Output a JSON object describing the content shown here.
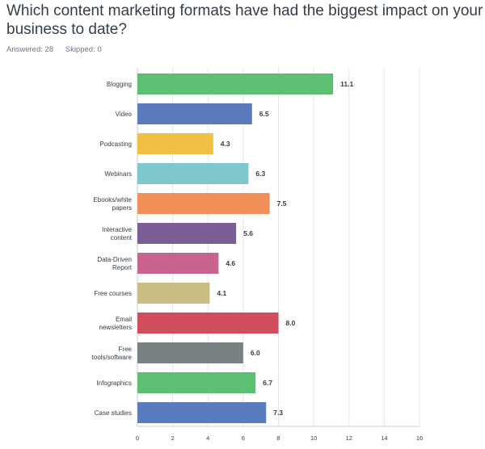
{
  "survey": {
    "question": "Which content marketing formats have had the biggest impact on your business to date?",
    "answered_label": "Answered: 28",
    "skipped_label": "Skipped: 0"
  },
  "chart_data": {
    "type": "bar",
    "orientation": "horizontal",
    "categories": [
      "Blogging",
      "Video",
      "Podcasting",
      "Webinars",
      "Ebooks/white papers",
      "Interactive content",
      "Data-Driven Report",
      "Free courses",
      "Email newsletters",
      "Free tools/software",
      "Infographics",
      "Case studies"
    ],
    "category_lines": [
      [
        "Blogging"
      ],
      [
        "Video"
      ],
      [
        "Podcasting"
      ],
      [
        "Webinars"
      ],
      [
        "Ebooks/white",
        "papers"
      ],
      [
        "Interactive",
        "content"
      ],
      [
        "Data-Driven",
        "Report"
      ],
      [
        "Free courses"
      ],
      [
        "Email",
        "newsletters"
      ],
      [
        "Free",
        "tools/software"
      ],
      [
        "Infographics"
      ],
      [
        "Case studies"
      ]
    ],
    "values": [
      11.1,
      6.5,
      4.3,
      6.3,
      7.5,
      5.6,
      4.6,
      4.1,
      8.0,
      6.0,
      6.7,
      7.3
    ],
    "value_labels": [
      "11.1",
      "6.5",
      "4.3",
      "6.3",
      "7.5",
      "5.6",
      "4.6",
      "4.1",
      "8.0",
      "6.0",
      "6.7",
      "7.3"
    ],
    "colors": [
      "#5cbf72",
      "#5a7bbd",
      "#f1c042",
      "#7ec7cc",
      "#f28f58",
      "#7a5e95",
      "#c7638e",
      "#c9bd83",
      "#d04e5c",
      "#7a8183",
      "#5cbf72",
      "#5a7bbd"
    ],
    "xlim": [
      0,
      16
    ],
    "xticks": [
      0,
      2,
      4,
      6,
      8,
      10,
      12,
      14,
      16
    ],
    "grid": true,
    "title": "",
    "xlabel": "",
    "ylabel": ""
  }
}
